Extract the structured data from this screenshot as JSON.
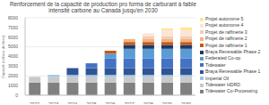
{
  "chart_data": {
    "type": "bar",
    "title": "Renforcement de la capacité de production pro forma de carburant à faible intensité carbone au Canada jusqu'en 2030",
    "y_label": "Capacité (millions de litres)",
    "categories": [
      "2022",
      "2023",
      "2024",
      "2025",
      "2026",
      "2027",
      "2028",
      "2029",
      "2030"
    ],
    "series": [
      {
        "name": "Tidewater Co-Processing",
        "color": "#808080",
        "values": [
          1300,
          1300,
          1300,
          1300,
          1300,
          1300,
          1300,
          1300,
          1300
        ]
      },
      {
        "name": "Tidewater HDRD",
        "color": "#c9c9c9",
        "values": [
          600,
          600,
          600,
          600,
          600,
          600,
          600,
          600,
          600
        ]
      },
      {
        "name": "Imperial Oil",
        "color": "#9dc3e6",
        "values": [
          0,
          200,
          200,
          200,
          200,
          200,
          200,
          200,
          200
        ]
      },
      {
        "name": "Braya Renewable Phase 1",
        "color": "#2f5597",
        "values": [
          0,
          0,
          700,
          700,
          700,
          700,
          700,
          700,
          700
        ]
      },
      {
        "name": "Tidewater",
        "color": "#4472c4",
        "values": [
          0,
          0,
          0,
          500,
          1000,
          1000,
          1000,
          1000,
          1000
        ]
      },
      {
        "name": "Federated Co-op",
        "color": "#5b9bd5",
        "values": [
          0,
          0,
          0,
          0,
          500,
          1000,
          1000,
          1000,
          1000
        ]
      },
      {
        "name": "Braya Renewable Phase 2",
        "color": "#1f3864",
        "values": [
          0,
          0,
          0,
          0,
          0,
          400,
          400,
          400,
          400
        ]
      },
      {
        "name": "Projet de raffinerie 1",
        "color": "#c55a11",
        "values": [
          0,
          0,
          0,
          0,
          300,
          300,
          300,
          300,
          300
        ]
      },
      {
        "name": "Projet de raffinerie 2",
        "color": "#f4b183",
        "values": [
          0,
          0,
          0,
          0,
          0,
          300,
          300,
          300,
          300
        ]
      },
      {
        "name": "Projet de raffinerie 3",
        "color": "#f8cbad",
        "values": [
          0,
          0,
          0,
          0,
          0,
          0,
          300,
          300,
          300
        ]
      },
      {
        "name": "Projet autonome 4",
        "color": "#fbe5d6",
        "values": [
          0,
          0,
          0,
          0,
          0,
          0,
          300,
          600,
          600
        ]
      },
      {
        "name": "Projet autonome 5",
        "color": "#ffe699",
        "values": [
          0,
          0,
          0,
          0,
          0,
          0,
          0,
          200,
          300
        ]
      }
    ],
    "ylim": [
      0,
      8000
    ],
    "yticks": [
      0,
      1000,
      2000,
      3000,
      4000,
      5000,
      6000,
      7000,
      8000
    ],
    "grid": true,
    "stacked": true,
    "legend": "right"
  }
}
